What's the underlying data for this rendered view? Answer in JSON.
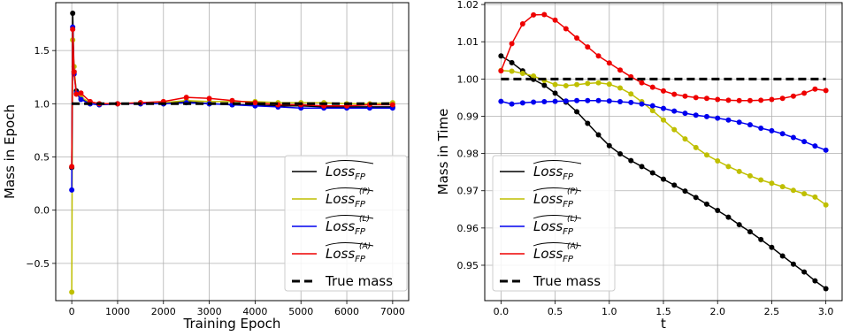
{
  "chart_data": [
    {
      "type": "line",
      "xlabel": "Training Epoch",
      "ylabel": "Mass in Epoch",
      "xlim": [
        -350,
        7350
      ],
      "ylim": [
        -0.85,
        1.95
      ],
      "xticks": [
        0,
        1000,
        2000,
        3000,
        4000,
        5000,
        6000,
        7000
      ],
      "xtick_labels": [
        "0",
        "1000",
        "2000",
        "3000",
        "4000",
        "5000",
        "6000",
        "7000"
      ],
      "yticks": [
        -0.5,
        0.0,
        0.5,
        1.0,
        1.5
      ],
      "ytick_labels": [
        "−0.5",
        "0.0",
        "0.5",
        "1.0",
        "1.5"
      ],
      "grid": true,
      "legend_position": "lower-right",
      "series": [
        {
          "name": "Loss_FP",
          "label_base": "Loss",
          "sub": "FP",
          "sup": "",
          "color": "#000000",
          "marker": true,
          "x": [
            0,
            20,
            50,
            100,
            200,
            400,
            600,
            1000,
            1500,
            2000,
            2500,
            3000,
            3500,
            4000,
            4500,
            5000,
            5500,
            6000,
            6500,
            7000
          ],
          "y": [
            0.4,
            1.85,
            1.3,
            1.12,
            1.05,
            1.0,
            0.99,
            1.0,
            1.0,
            1.0,
            1.02,
            1.0,
            0.99,
            0.99,
            0.98,
            0.98,
            0.97,
            0.97,
            0.97,
            0.97
          ]
        },
        {
          "name": "Loss_FP^(P)",
          "label_base": "Loss",
          "sub": "FP",
          "sup": "(P)",
          "color": "#bfbf00",
          "marker": true,
          "x": [
            0,
            20,
            50,
            100,
            200,
            400,
            600,
            1000,
            1500,
            2000,
            2500,
            3000,
            3500,
            4000,
            4500,
            5000,
            5500,
            6000,
            6500,
            7000
          ],
          "y": [
            -0.77,
            1.6,
            1.35,
            1.1,
            1.06,
            1.01,
            1.0,
            1.0,
            1.01,
            1.01,
            1.03,
            1.02,
            1.02,
            1.02,
            1.01,
            1.01,
            1.01,
            1.0,
            1.0,
            1.01
          ]
        },
        {
          "name": "Loss_FP^(L)",
          "label_base": "Loss",
          "sub": "FP",
          "sup": "(L)",
          "color": "#0000ee",
          "marker": true,
          "x": [
            0,
            20,
            50,
            100,
            200,
            400,
            600,
            1000,
            1500,
            2000,
            2500,
            3000,
            3500,
            4000,
            4500,
            5000,
            5500,
            6000,
            6500,
            7000
          ],
          "y": [
            0.19,
            1.72,
            1.28,
            1.1,
            1.04,
            1.0,
            0.99,
            1.0,
            1.0,
            1.0,
            1.01,
            1.0,
            0.99,
            0.98,
            0.97,
            0.96,
            0.96,
            0.96,
            0.96,
            0.96
          ]
        },
        {
          "name": "Loss_FP^(A)",
          "label_base": "Loss",
          "sub": "FP",
          "sup": "(A)",
          "color": "#ee0000",
          "marker": true,
          "x": [
            0,
            20,
            50,
            100,
            200,
            400,
            600,
            1000,
            1500,
            2000,
            2500,
            3000,
            3500,
            4000,
            4500,
            5000,
            5500,
            6000,
            6500,
            7000
          ],
          "y": [
            0.41,
            1.7,
            1.3,
            1.09,
            1.1,
            1.02,
            1.0,
            1.0,
            1.01,
            1.02,
            1.06,
            1.05,
            1.03,
            1.01,
            0.99,
            0.99,
            0.98,
            0.98,
            0.99,
            0.99
          ]
        },
        {
          "name": "True mass",
          "label_base": "True mass",
          "sub": "",
          "sup": "",
          "color": "#000000",
          "dashed": true,
          "marker": false,
          "x": [
            0,
            7000
          ],
          "y": [
            1.0,
            1.0
          ]
        }
      ]
    },
    {
      "type": "line",
      "xlabel": "t",
      "ylabel": "Mass in Time",
      "xlim": [
        -0.15,
        3.15
      ],
      "ylim": [
        0.9405,
        1.0205
      ],
      "xticks": [
        0.0,
        0.5,
        1.0,
        1.5,
        2.0,
        2.5,
        3.0
      ],
      "xtick_labels": [
        "0.0",
        "0.5",
        "1.0",
        "1.5",
        "2.0",
        "2.5",
        "3.0"
      ],
      "yticks": [
        0.95,
        0.96,
        0.97,
        0.98,
        0.99,
        1.0,
        1.01,
        1.02
      ],
      "ytick_labels": [
        "0.95",
        "0.96",
        "0.97",
        "0.98",
        "0.99",
        "1.00",
        "1.01",
        "1.02"
      ],
      "grid": true,
      "legend_position": "lower-left",
      "series": [
        {
          "name": "Loss_FP",
          "label_base": "Loss",
          "sub": "FP",
          "sup": "",
          "color": "#000000",
          "marker": true,
          "x": [
            0.0,
            0.1,
            0.2,
            0.3,
            0.4,
            0.5,
            0.6,
            0.7,
            0.8,
            0.9,
            1.0,
            1.1,
            1.2,
            1.3,
            1.4,
            1.5,
            1.6,
            1.7,
            1.8,
            1.9,
            2.0,
            2.1,
            2.2,
            2.3,
            2.4,
            2.5,
            2.6,
            2.7,
            2.8,
            2.9,
            3.0
          ],
          "y": [
            1.0062,
            1.0044,
            1.0022,
            0.9999,
            0.9983,
            0.9962,
            0.9938,
            0.9912,
            0.9881,
            0.985,
            0.9821,
            0.9799,
            0.9781,
            0.9765,
            0.9748,
            0.9731,
            0.9715,
            0.9699,
            0.9682,
            0.9664,
            0.9647,
            0.9629,
            0.9609,
            0.959,
            0.9569,
            0.9548,
            0.9525,
            0.9503,
            0.9482,
            0.9458,
            0.9437
          ]
        },
        {
          "name": "Loss_FP^(P)",
          "label_base": "Loss",
          "sub": "FP",
          "sup": "(P)",
          "color": "#bfbf00",
          "marker": true,
          "x": [
            0.0,
            0.1,
            0.2,
            0.3,
            0.4,
            0.5,
            0.6,
            0.7,
            0.8,
            0.9,
            1.0,
            1.1,
            1.2,
            1.3,
            1.4,
            1.5,
            1.6,
            1.7,
            1.8,
            1.9,
            2.0,
            2.1,
            2.2,
            2.3,
            2.4,
            2.5,
            2.6,
            2.7,
            2.8,
            2.9,
            3.0
          ],
          "y": [
            1.0023,
            1.0021,
            1.0015,
            1.0008,
            0.9996,
            0.9985,
            0.9982,
            0.9985,
            0.9988,
            0.999,
            0.9986,
            0.9976,
            0.996,
            0.9939,
            0.9915,
            0.989,
            0.9864,
            0.9839,
            0.9816,
            0.9796,
            0.978,
            0.9765,
            0.9752,
            0.974,
            0.9729,
            0.972,
            0.9711,
            0.9701,
            0.9692,
            0.9683,
            0.9662
          ]
        },
        {
          "name": "Loss_FP^(L)",
          "label_base": "Loss",
          "sub": "FP",
          "sup": "(L)",
          "color": "#0000ee",
          "marker": true,
          "x": [
            0.0,
            0.1,
            0.2,
            0.3,
            0.4,
            0.5,
            0.6,
            0.7,
            0.8,
            0.9,
            1.0,
            1.1,
            1.2,
            1.3,
            1.4,
            1.5,
            1.6,
            1.7,
            1.8,
            1.9,
            2.0,
            2.1,
            2.2,
            2.3,
            2.4,
            2.5,
            2.6,
            2.7,
            2.8,
            2.9,
            3.0
          ],
          "y": [
            0.994,
            0.9933,
            0.9936,
            0.9938,
            0.9939,
            0.994,
            0.9941,
            0.9942,
            0.9942,
            0.9942,
            0.9941,
            0.9939,
            0.9937,
            0.9933,
            0.9928,
            0.9921,
            0.9914,
            0.9908,
            0.9903,
            0.9899,
            0.9895,
            0.989,
            0.9884,
            0.9877,
            0.9868,
            0.9861,
            0.9853,
            0.9843,
            0.9832,
            0.982,
            0.9809
          ]
        },
        {
          "name": "Loss_FP^(A)",
          "label_base": "Loss",
          "sub": "FP",
          "sup": "(A)",
          "color": "#ee0000",
          "marker": true,
          "x": [
            0.0,
            0.1,
            0.2,
            0.3,
            0.4,
            0.5,
            0.6,
            0.7,
            0.8,
            0.9,
            1.0,
            1.1,
            1.2,
            1.3,
            1.4,
            1.5,
            1.6,
            1.7,
            1.8,
            1.9,
            2.0,
            2.1,
            2.2,
            2.3,
            2.4,
            2.5,
            2.6,
            2.7,
            2.8,
            2.9,
            3.0
          ],
          "y": [
            1.0022,
            1.0095,
            1.0148,
            1.0172,
            1.0173,
            1.0158,
            1.0135,
            1.011,
            1.0086,
            1.0062,
            1.0043,
            1.0024,
            1.0006,
            0.999,
            0.9978,
            0.9968,
            0.9959,
            0.9954,
            0.995,
            0.9948,
            0.9945,
            0.9943,
            0.9942,
            0.9942,
            0.9943,
            0.9945,
            0.9948,
            0.9954,
            0.9962,
            0.9973,
            0.9969
          ]
        },
        {
          "name": "True mass",
          "label_base": "True mass",
          "sub": "",
          "sup": "",
          "color": "#000000",
          "dashed": true,
          "marker": false,
          "x": [
            0.0,
            3.0
          ],
          "y": [
            1.0,
            1.0
          ]
        }
      ]
    }
  ]
}
